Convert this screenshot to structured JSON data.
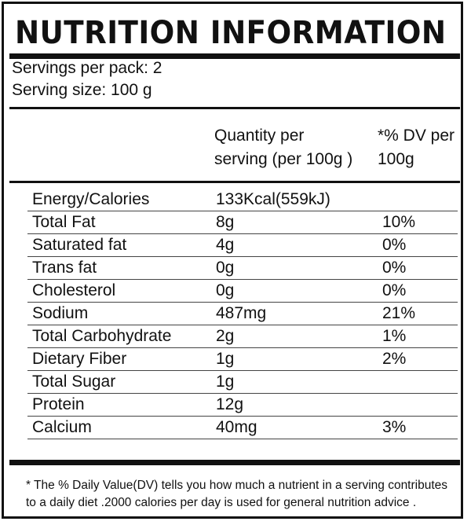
{
  "title": "NUTRITION INFORMATION",
  "servings_per_pack": "Servings per pack: 2",
  "serving_size": "Serving size: 100 g",
  "header": {
    "quantity_line1": "Quantity per",
    "quantity_line2": "serving (per 100g )",
    "dv_line1": "*% DV per",
    "dv_line2": "100g"
  },
  "rows": [
    {
      "nutrient": "Energy/Calories",
      "quantity": "133Kcal(559kJ)",
      "dv": ""
    },
    {
      "nutrient": "Total Fat",
      "quantity": "8g",
      "dv": "10%"
    },
    {
      "nutrient": "Saturated fat",
      "quantity": "4g",
      "dv": "0%"
    },
    {
      "nutrient": "Trans fat",
      "quantity": "0g",
      "dv": "0%"
    },
    {
      "nutrient": "Cholesterol",
      "quantity": "0g",
      "dv": "0%"
    },
    {
      "nutrient": "Sodium",
      "quantity": "487mg",
      "dv": "21%"
    },
    {
      "nutrient": "Total Carbohydrate",
      "quantity": "2g",
      "dv": "1%"
    },
    {
      "nutrient": "Dietary Fiber",
      "quantity": "1g",
      "dv": "2%"
    },
    {
      "nutrient": "Total Sugar",
      "quantity": "1g",
      "dv": ""
    },
    {
      "nutrient": "Protein",
      "quantity": "12g",
      "dv": ""
    },
    {
      "nutrient": "Calcium",
      "quantity": "40mg",
      "dv": "3%"
    }
  ],
  "footnote_line1": "* The % Daily Value(DV) tells you how much a nutrient in a serving contributes",
  "footnote_line2": "to a daily diet .2000 calories per day is used for general nutrition advice ."
}
